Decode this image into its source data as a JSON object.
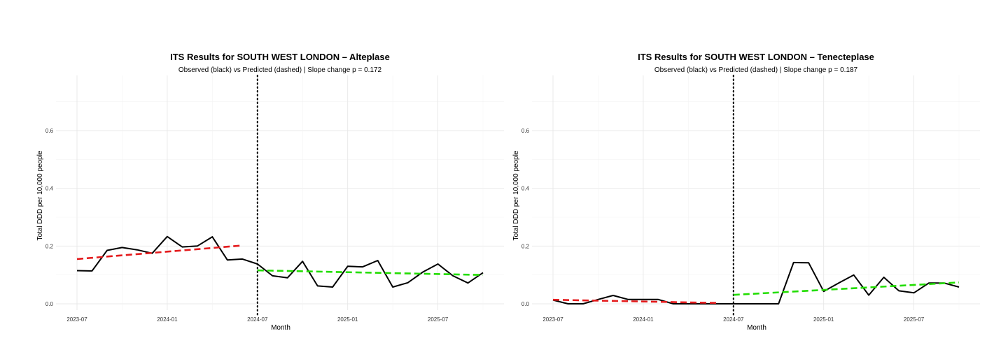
{
  "chart_data": [
    {
      "type": "line",
      "title": "ITS Results for SOUTH WEST LONDON – Alteplase",
      "subtitle": "Observed (black) vs Predicted (dashed) | Slope change p = 0.172",
      "xlabel": "Month",
      "ylabel": "Total DDD per 10,000 people",
      "x_ticks": [
        "2023-07",
        "2024-01",
        "2024-07",
        "2025-01",
        "2025-07"
      ],
      "y_ticks": [
        0.0,
        0.2,
        0.4,
        0.6
      ],
      "y_tick_labels": [
        "0.0",
        "0.2",
        "0.4",
        "0.6"
      ],
      "xlim": [
        "2023-07",
        "2025-10"
      ],
      "ylim": [
        0.0,
        0.7
      ],
      "grid": true,
      "intervention": "2024-07",
      "series": [
        {
          "style": "solid",
          "color": "#000000",
          "points": [
            [
              "2023-07",
              0.115
            ],
            [
              "2023-08",
              0.114
            ],
            [
              "2023-09",
              0.185
            ],
            [
              "2023-10",
              0.195
            ],
            [
              "2023-11",
              0.187
            ],
            [
              "2023-12",
              0.175
            ],
            [
              "2024-01",
              0.233
            ],
            [
              "2024-02",
              0.197
            ],
            [
              "2024-03",
              0.2
            ],
            [
              "2024-04",
              0.232
            ],
            [
              "2024-05",
              0.152
            ],
            [
              "2024-06",
              0.155
            ],
            [
              "2024-07",
              0.138
            ],
            [
              "2024-08",
              0.097
            ],
            [
              "2024-09",
              0.09
            ],
            [
              "2024-10",
              0.147
            ],
            [
              "2024-11",
              0.062
            ],
            [
              "2024-12",
              0.058
            ],
            [
              "2025-01",
              0.13
            ],
            [
              "2025-02",
              0.128
            ],
            [
              "2025-03",
              0.15
            ],
            [
              "2025-04",
              0.058
            ],
            [
              "2025-05",
              0.073
            ],
            [
              "2025-06",
              0.11
            ],
            [
              "2025-07",
              0.138
            ],
            [
              "2025-08",
              0.097
            ],
            [
              "2025-09",
              0.072
            ],
            [
              "2025-10",
              0.108
            ]
          ]
        },
        {
          "style": "dashed",
          "color": "#e41a1c",
          "points": [
            [
              "2023-07",
              0.155
            ],
            [
              "2024-06",
              0.202
            ]
          ]
        },
        {
          "style": "dashed",
          "color": "#22dd00",
          "points": [
            [
              "2024-07",
              0.116
            ],
            [
              "2025-10",
              0.1
            ]
          ]
        }
      ]
    },
    {
      "type": "line",
      "title": "ITS Results for SOUTH WEST LONDON – Tenecteplase",
      "subtitle": "Observed (black) vs Predicted (dashed) | Slope change p = 0.187",
      "xlabel": "Month",
      "ylabel": "Total DDD per 10,000 people",
      "x_ticks": [
        "2023-07",
        "2024-01",
        "2024-07",
        "2025-01",
        "2025-07"
      ],
      "y_ticks": [
        0.0,
        0.2,
        0.4,
        0.6
      ],
      "y_tick_labels": [
        "0.0",
        "0.2",
        "0.4",
        "0.6"
      ],
      "xlim": [
        "2023-07",
        "2025-10"
      ],
      "ylim": [
        0.0,
        0.7
      ],
      "grid": true,
      "intervention": "2024-07",
      "series": [
        {
          "style": "solid",
          "color": "#000000",
          "points": [
            [
              "2023-07",
              0.013
            ],
            [
              "2023-08",
              0.0
            ],
            [
              "2023-09",
              0.0
            ],
            [
              "2023-10",
              0.015
            ],
            [
              "2023-11",
              0.029
            ],
            [
              "2023-12",
              0.015
            ],
            [
              "2024-01",
              0.015
            ],
            [
              "2024-02",
              0.015
            ],
            [
              "2024-03",
              0.0
            ],
            [
              "2024-04",
              0.0
            ],
            [
              "2024-05",
              0.0
            ],
            [
              "2024-06",
              0.0
            ],
            [
              "2024-07",
              0.0
            ],
            [
              "2024-08",
              0.0
            ],
            [
              "2024-09",
              0.0
            ],
            [
              "2024-10",
              0.0
            ],
            [
              "2024-11",
              0.143
            ],
            [
              "2024-12",
              0.142
            ],
            [
              "2025-01",
              0.043
            ],
            [
              "2025-02",
              0.072
            ],
            [
              "2025-03",
              0.1
            ],
            [
              "2025-04",
              0.03
            ],
            [
              "2025-05",
              0.092
            ],
            [
              "2025-06",
              0.045
            ],
            [
              "2025-07",
              0.038
            ],
            [
              "2025-08",
              0.072
            ],
            [
              "2025-09",
              0.072
            ],
            [
              "2025-10",
              0.058
            ]
          ]
        },
        {
          "style": "dashed",
          "color": "#e41a1c",
          "points": [
            [
              "2023-07",
              0.014
            ],
            [
              "2024-06",
              0.003
            ]
          ]
        },
        {
          "style": "dashed",
          "color": "#22dd00",
          "points": [
            [
              "2024-07",
              0.031
            ],
            [
              "2025-10",
              0.074
            ]
          ]
        }
      ]
    }
  ]
}
